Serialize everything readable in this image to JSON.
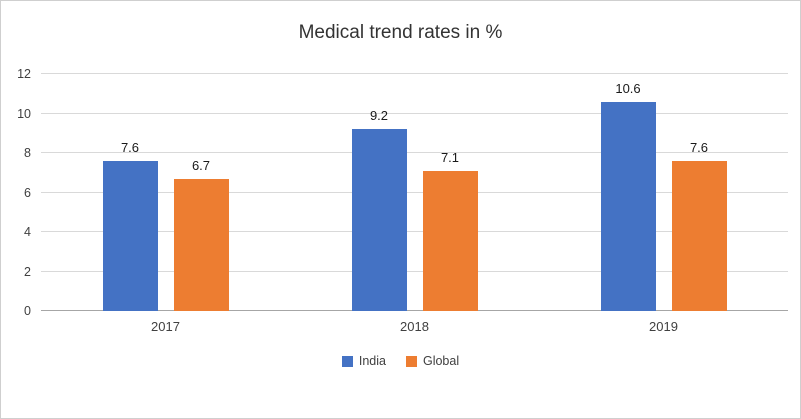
{
  "chart_data": {
    "type": "bar",
    "title": "Medical trend rates in %",
    "categories": [
      "2017",
      "2018",
      "2019"
    ],
    "series": [
      {
        "name": "India",
        "color": "#4472C4",
        "values": [
          7.6,
          9.2,
          10.6
        ]
      },
      {
        "name": "Global",
        "color": "#ED7D31",
        "values": [
          6.7,
          7.1,
          7.6
        ]
      }
    ],
    "xlabel": "",
    "ylabel": "",
    "ylim": [
      0,
      12
    ],
    "ytick_step": 2,
    "grid": true,
    "legend_position": "bottom"
  }
}
